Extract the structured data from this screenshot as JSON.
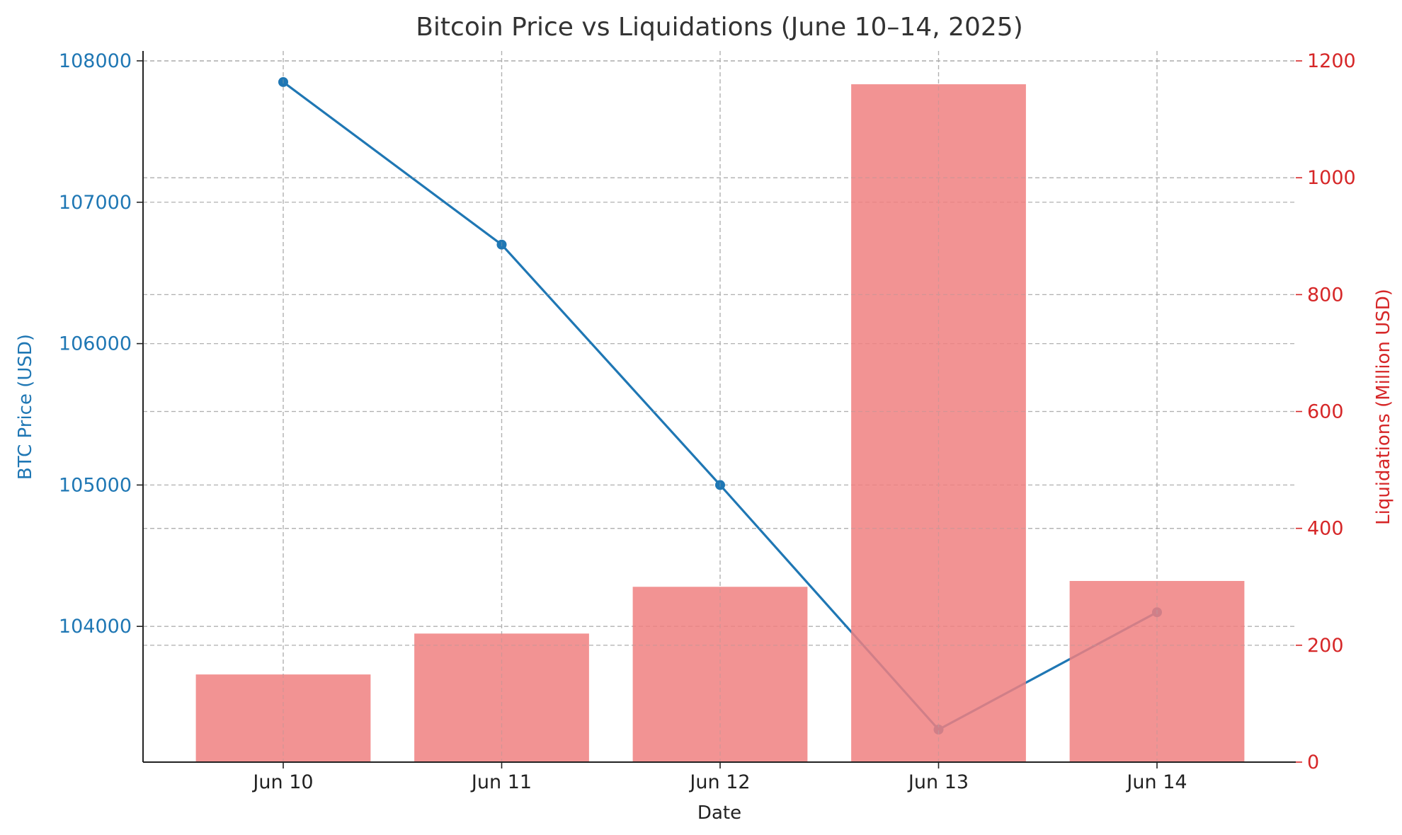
{
  "chart_data": {
    "type": "bar+line",
    "title": "Bitcoin Price vs Liquidations (June 10–14, 2025)",
    "xlabel": "Date",
    "categories": [
      "Jun 10",
      "Jun 11",
      "Jun 12",
      "Jun 13",
      "Jun 14"
    ],
    "series": [
      {
        "name": "BTC Price (USD)",
        "type": "line",
        "axis": "left",
        "color": "#1f77b4",
        "values": [
          107850,
          106700,
          105000,
          103270,
          104100
        ]
      },
      {
        "name": "Liquidations (Million USD)",
        "type": "bar",
        "axis": "right",
        "color": "#f08080",
        "values": [
          150,
          220,
          300,
          1160,
          310
        ]
      }
    ],
    "left_axis": {
      "label": "BTC Price (USD)",
      "color": "#1f77b4",
      "range": [
        103040,
        108070
      ],
      "ticks": [
        104000,
        105000,
        106000,
        107000,
        108000
      ]
    },
    "right_axis": {
      "label": "Liquidations (Million USD)",
      "color": "#d62728",
      "range": [
        0,
        1217
      ],
      "ticks": [
        0,
        200,
        400,
        600,
        800,
        1000,
        1200
      ]
    },
    "grid": true,
    "legend": "none"
  }
}
